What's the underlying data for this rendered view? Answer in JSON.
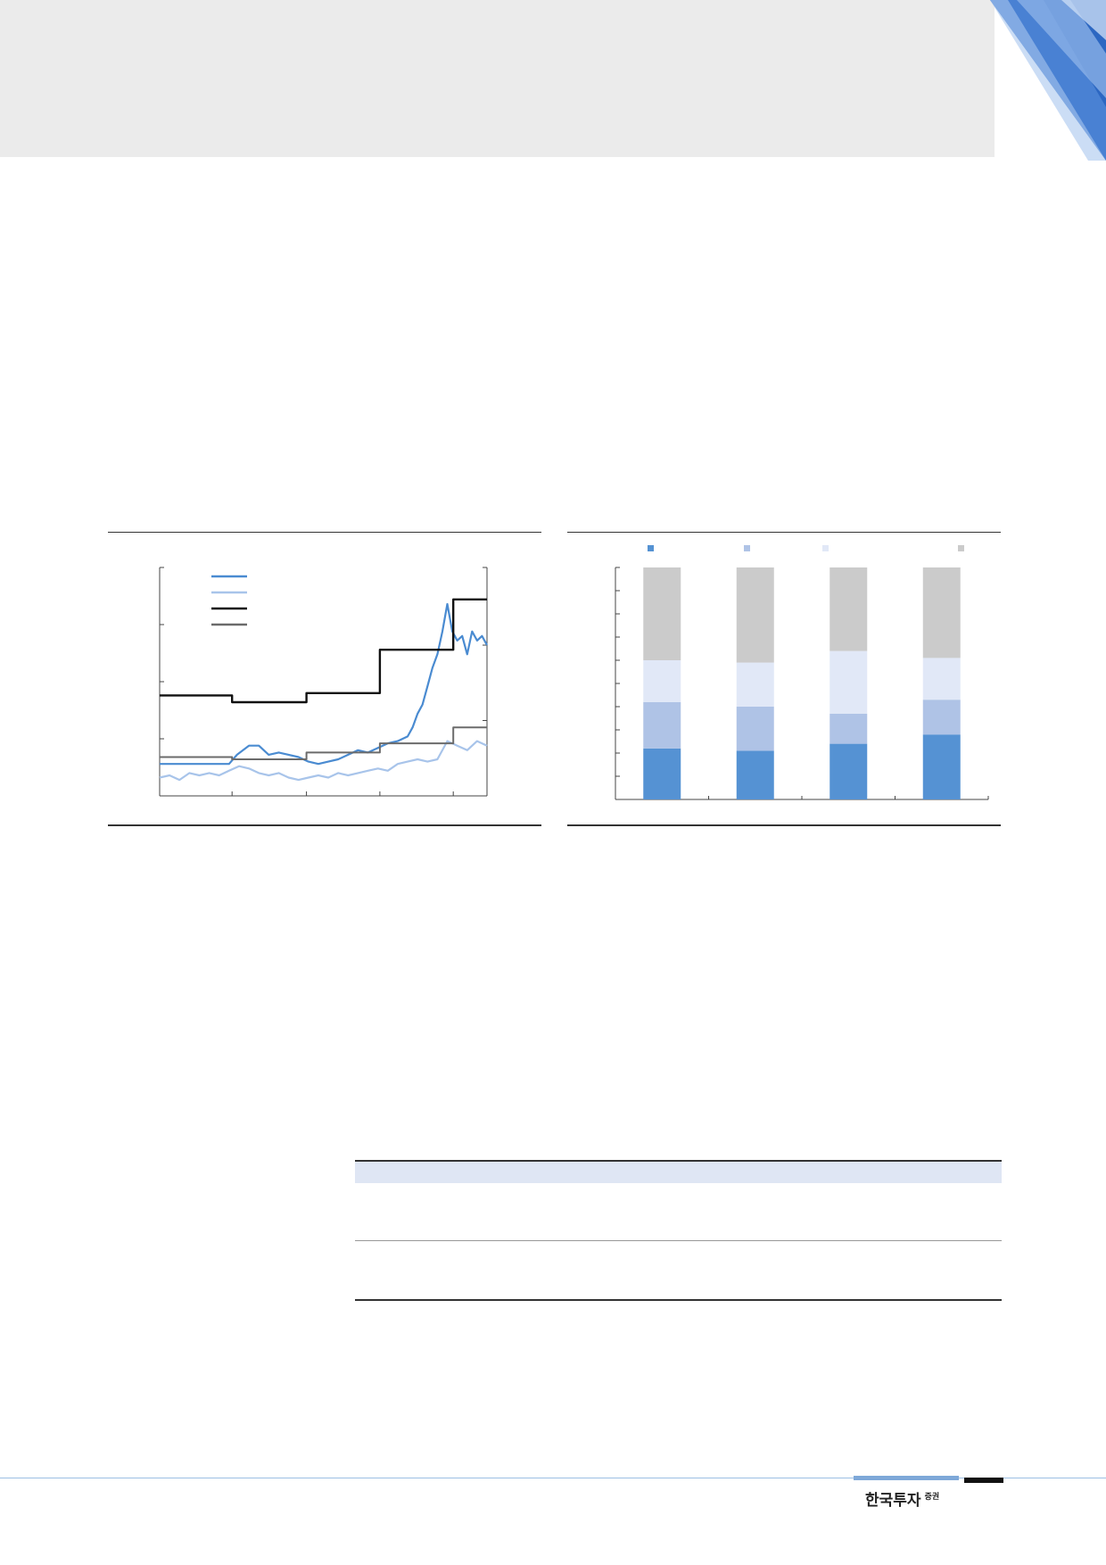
{
  "footer": {
    "brand_main": "한국투자",
    "brand_sub": "증권"
  },
  "colors": {
    "header_band": "#ebebeb",
    "series_blue": "#4a8bd1",
    "series_lightblue": "#a8c4ea",
    "series_black": "#111111",
    "series_gray": "#6b6b6b",
    "stack_1": "#5592d3",
    "stack_2": "#afc3e6",
    "stack_3": "#e1e8f7",
    "stack_4": "#cbcbcb"
  },
  "chart_data": [
    {
      "type": "line",
      "title": "",
      "legend": "top-left",
      "grid": false,
      "xlim": [
        0,
        330
      ],
      "ylim": [
        0,
        100
      ],
      "series": [
        {
          "values": [
            [
              0,
              14
            ],
            [
              10,
              14
            ],
            [
              20,
              14
            ],
            [
              30,
              14
            ],
            [
              40,
              14
            ],
            [
              50,
              14
            ],
            [
              60,
              14
            ],
            [
              70,
              14
            ],
            [
              78,
              18
            ],
            [
              90,
              22
            ],
            [
              100,
              22
            ],
            [
              110,
              18
            ],
            [
              120,
              19
            ],
            [
              130,
              18
            ],
            [
              140,
              17
            ],
            [
              150,
              15
            ],
            [
              160,
              14
            ],
            [
              170,
              15
            ],
            [
              180,
              16
            ],
            [
              190,
              18
            ],
            [
              200,
              20
            ],
            [
              210,
              19
            ],
            [
              220,
              21
            ],
            [
              230,
              23
            ],
            [
              240,
              24
            ],
            [
              250,
              26
            ],
            [
              255,
              30
            ],
            [
              260,
              36
            ],
            [
              265,
              40
            ],
            [
              270,
              48
            ],
            [
              275,
              56
            ],
            [
              280,
              62
            ],
            [
              285,
              72
            ],
            [
              290,
              84
            ],
            [
              295,
              72
            ],
            [
              300,
              68
            ],
            [
              305,
              70
            ],
            [
              310,
              62
            ],
            [
              315,
              72
            ],
            [
              320,
              68
            ],
            [
              325,
              70
            ],
            [
              330,
              66
            ]
          ]
        },
        {
          "values": [
            [
              0,
              8
            ],
            [
              10,
              9
            ],
            [
              20,
              7
            ],
            [
              30,
              10
            ],
            [
              40,
              9
            ],
            [
              50,
              10
            ],
            [
              60,
              9
            ],
            [
              70,
              11
            ],
            [
              80,
              13
            ],
            [
              90,
              12
            ],
            [
              100,
              10
            ],
            [
              110,
              9
            ],
            [
              120,
              10
            ],
            [
              130,
              8
            ],
            [
              140,
              7
            ],
            [
              150,
              8
            ],
            [
              160,
              9
            ],
            [
              170,
              8
            ],
            [
              180,
              10
            ],
            [
              190,
              9
            ],
            [
              200,
              10
            ],
            [
              210,
              11
            ],
            [
              220,
              12
            ],
            [
              230,
              11
            ],
            [
              240,
              14
            ],
            [
              250,
              15
            ],
            [
              260,
              16
            ],
            [
              270,
              15
            ],
            [
              280,
              16
            ],
            [
              290,
              24
            ],
            [
              300,
              22
            ],
            [
              310,
              20
            ],
            [
              320,
              24
            ],
            [
              330,
              22
            ]
          ]
        },
        {
          "values": [
            [
              0,
              44
            ],
            [
              73,
              44
            ],
            [
              73,
              41
            ],
            [
              148,
              41
            ],
            [
              148,
              45
            ],
            [
              222,
              45
            ],
            [
              222,
              64
            ],
            [
              296,
              64
            ],
            [
              296,
              86
            ],
            [
              330,
              86
            ]
          ]
        },
        {
          "values": [
            [
              0,
              17
            ],
            [
              73,
              17
            ],
            [
              73,
              16
            ],
            [
              148,
              16
            ],
            [
              148,
              19
            ],
            [
              222,
              19
            ],
            [
              222,
              23
            ],
            [
              296,
              23
            ],
            [
              296,
              30
            ],
            [
              330,
              30
            ]
          ]
        }
      ]
    },
    {
      "type": "bar",
      "stacked": true,
      "title": "",
      "legend": "top",
      "grid": false,
      "categories": [
        "",
        "",
        "",
        ""
      ],
      "ylim": [
        0,
        100
      ],
      "series": [
        {
          "values": [
            22,
            21,
            24,
            28
          ]
        },
        {
          "values": [
            20,
            19,
            13,
            15
          ]
        },
        {
          "values": [
            18,
            19,
            27,
            18
          ]
        },
        {
          "values": [
            40,
            41,
            36,
            39
          ]
        }
      ]
    }
  ]
}
